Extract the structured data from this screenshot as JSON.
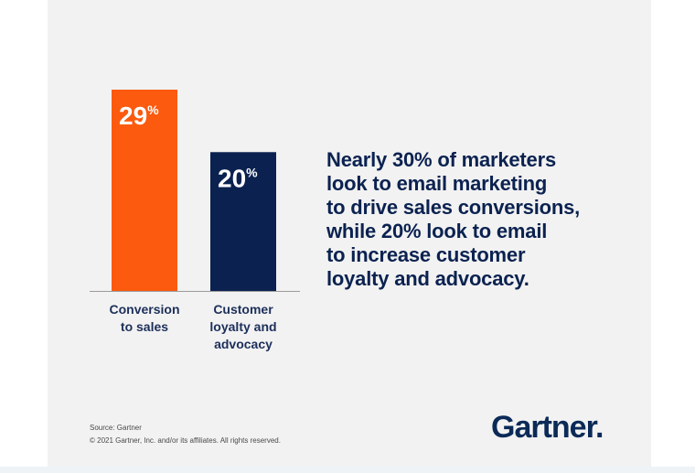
{
  "chart_data": {
    "type": "bar",
    "categories": [
      "Conversion to sales",
      "Customer loyalty and advocacy"
    ],
    "category_lines": [
      [
        "Conversion",
        "to sales"
      ],
      [
        "Customer",
        "loyalty and",
        "advocacy"
      ]
    ],
    "values": [
      29,
      20
    ],
    "value_labels": [
      "29",
      "20"
    ],
    "unit": "%",
    "colors": [
      "#fb5a0f",
      "#0b2250"
    ],
    "ylim": [
      0,
      29
    ],
    "grid": false,
    "title": "",
    "xlabel": "",
    "ylabel": ""
  },
  "headline_lines": [
    "Nearly 30% of marketers",
    "look to email marketing",
    "to drive sales conversions,",
    "while 20% look to email",
    "to increase customer",
    "loyalty and advocacy."
  ],
  "footer": {
    "source": "Source: Gartner",
    "copyright": "© 2021 Gartner, Inc. and/or its affiliates. All rights reserved."
  },
  "brand": {
    "logo_text": "Gartner.",
    "color": "#0b2a57"
  }
}
